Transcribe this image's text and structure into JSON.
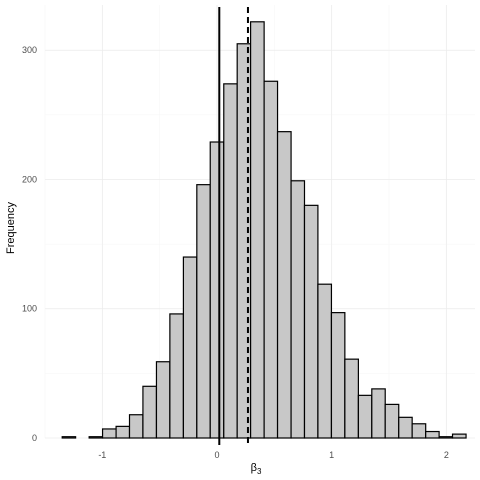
{
  "chart_data": {
    "type": "bar",
    "subtype": "histogram",
    "xlabel_symbol": "β",
    "xlabel_subscript": "3",
    "ylabel": "Frequency",
    "xlim": [
      -1.5,
      2.25
    ],
    "ylim": [
      0,
      335
    ],
    "x_ticks": [
      -1,
      0,
      1,
      2
    ],
    "x_tick_labels": [
      "-1",
      "0",
      "1",
      "2"
    ],
    "y_ticks": [
      0,
      100,
      200,
      300
    ],
    "y_tick_labels": [
      "0",
      "100",
      "200",
      "300"
    ],
    "bin_width": 0.1174,
    "bins": [
      {
        "x0": -1.35,
        "x1": -1.233,
        "count": 1
      },
      {
        "x0": -1.233,
        "x1": -1.115,
        "count": 0
      },
      {
        "x0": -1.115,
        "x1": -0.998,
        "count": 1
      },
      {
        "x0": -0.998,
        "x1": -0.88,
        "count": 7
      },
      {
        "x0": -0.88,
        "x1": -0.763,
        "count": 9
      },
      {
        "x0": -0.763,
        "x1": -0.646,
        "count": 18
      },
      {
        "x0": -0.646,
        "x1": -0.528,
        "count": 40
      },
      {
        "x0": -0.528,
        "x1": -0.411,
        "count": 59
      },
      {
        "x0": -0.411,
        "x1": -0.293,
        "count": 96
      },
      {
        "x0": -0.293,
        "x1": -0.176,
        "count": 140
      },
      {
        "x0": -0.176,
        "x1": -0.059,
        "count": 196
      },
      {
        "x0": -0.059,
        "x1": 0.059,
        "count": 229
      },
      {
        "x0": 0.059,
        "x1": 0.176,
        "count": 274
      },
      {
        "x0": 0.176,
        "x1": 0.293,
        "count": 305
      },
      {
        "x0": 0.293,
        "x1": 0.411,
        "count": 322
      },
      {
        "x0": 0.411,
        "x1": 0.528,
        "count": 276
      },
      {
        "x0": 0.528,
        "x1": 0.646,
        "count": 237
      },
      {
        "x0": 0.646,
        "x1": 0.763,
        "count": 199
      },
      {
        "x0": 0.763,
        "x1": 0.88,
        "count": 180
      },
      {
        "x0": 0.88,
        "x1": 0.998,
        "count": 119
      },
      {
        "x0": 0.998,
        "x1": 1.115,
        "count": 97
      },
      {
        "x0": 1.115,
        "x1": 1.233,
        "count": 61
      },
      {
        "x0": 1.233,
        "x1": 1.35,
        "count": 33
      },
      {
        "x0": 1.35,
        "x1": 1.467,
        "count": 38
      },
      {
        "x0": 1.467,
        "x1": 1.585,
        "count": 26
      },
      {
        "x0": 1.585,
        "x1": 1.702,
        "count": 16
      },
      {
        "x0": 1.702,
        "x1": 1.82,
        "count": 11
      },
      {
        "x0": 1.82,
        "x1": 1.937,
        "count": 5
      },
      {
        "x0": 1.937,
        "x1": 2.054,
        "count": 1
      },
      {
        "x0": 2.054,
        "x1": 2.172,
        "count": 3
      }
    ],
    "reference_lines": [
      {
        "x": 0.02,
        "style": "solid"
      },
      {
        "x": 0.27,
        "style": "dashed"
      }
    ],
    "grid": true,
    "legend": "none",
    "bar_fill": "#c8c8c8",
    "bar_stroke": "#000000",
    "grid_major_color": "#ebebeb",
    "grid_minor_color": "#f5f5f5"
  }
}
